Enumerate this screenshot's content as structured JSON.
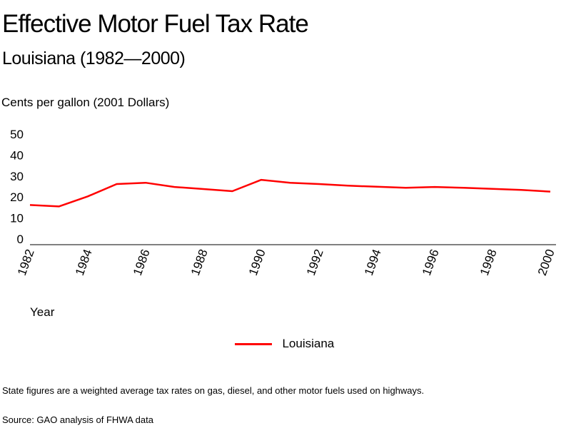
{
  "chart_data": {
    "type": "line",
    "title": "Effective Motor Fuel Tax Rate",
    "subtitle": "Louisiana (1982—2000)",
    "ylabel": "Cents per gallon (2001 Dollars)",
    "xlabel": "Year",
    "ylim": [
      0,
      50
    ],
    "yticks": [
      0,
      10,
      20,
      30,
      40,
      50
    ],
    "xlim": [
      1982,
      2000
    ],
    "xticks": [
      "1982",
      "1984",
      "1986",
      "1988",
      "1990",
      "1992",
      "1994",
      "1996",
      "1998",
      "2000"
    ],
    "grid": false,
    "legend_position": "bottom-center",
    "x": [
      1982,
      1983,
      1984,
      1985,
      1986,
      1987,
      1988,
      1989,
      1990,
      1991,
      1992,
      1993,
      1994,
      1995,
      1996,
      1997,
      1998,
      1999,
      2000
    ],
    "series": [
      {
        "name": "Louisiana",
        "color": "#ff0000",
        "values": [
          16.2,
          15.5,
          20.3,
          26.2,
          26.8,
          24.8,
          23.8,
          22.8,
          28.2,
          26.8,
          26.2,
          25.4,
          24.9,
          24.4,
          24.8,
          24.4,
          23.9,
          23.4,
          22.6
        ]
      }
    ]
  },
  "footnote": "State figures are a weighted average tax rates on gas, diesel, and other motor fuels used on highways.",
  "source": "Source: GAO analysis of FHWA data"
}
